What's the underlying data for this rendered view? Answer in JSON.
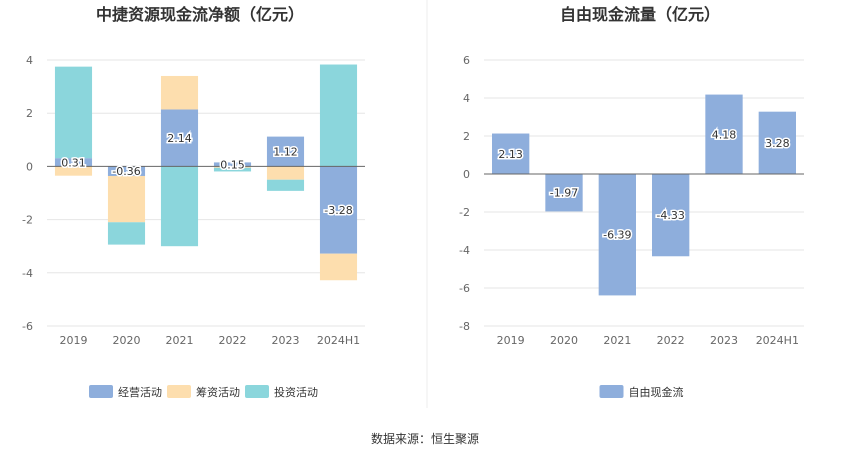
{
  "source_text": "数据来源：恒生聚源",
  "chart_data": [
    {
      "type": "bar",
      "stacked": true,
      "title": "中捷资源现金流净额（亿元）",
      "categories": [
        "2019",
        "2020",
        "2021",
        "2022",
        "2023",
        "2024H1"
      ],
      "ylim": [
        -6,
        4
      ],
      "yticks": [
        4,
        2,
        0,
        -2,
        -4,
        -6
      ],
      "grid": true,
      "legend_position": "bottom",
      "series": [
        {
          "name": "经营活动",
          "color": "#8eaedc",
          "values": [
            0.31,
            -0.36,
            2.14,
            0.15,
            1.12,
            -3.28
          ],
          "labels": [
            "0.31",
            "-0.36",
            "2.14",
            "0.15",
            "1.12",
            "-3.28"
          ]
        },
        {
          "name": "筹资活动",
          "color": "#fddeae",
          "values": [
            -0.35,
            -1.74,
            1.26,
            -0.05,
            -0.5,
            -1.0
          ],
          "labels": []
        },
        {
          "name": "投资活动",
          "color": "#8bd6dc",
          "values": [
            3.44,
            -0.84,
            -3.0,
            -0.14,
            -0.42,
            3.83
          ],
          "labels": []
        }
      ]
    },
    {
      "type": "bar",
      "title": "自由现金流量（亿元）",
      "categories": [
        "2019",
        "2020",
        "2021",
        "2022",
        "2023",
        "2024H1"
      ],
      "ylim": [
        -8,
        6
      ],
      "yticks": [
        6,
        4,
        2,
        0,
        -2,
        -4,
        -6,
        -8
      ],
      "grid": true,
      "legend_position": "bottom",
      "series": [
        {
          "name": "自由现金流",
          "color": "#8eaedc",
          "values": [
            2.13,
            -1.97,
            -6.39,
            -4.33,
            4.18,
            3.28
          ],
          "labels": [
            "2.13",
            "-1.97",
            "-6.39",
            "-4.33",
            "4.18",
            "3.28"
          ]
        }
      ]
    }
  ]
}
